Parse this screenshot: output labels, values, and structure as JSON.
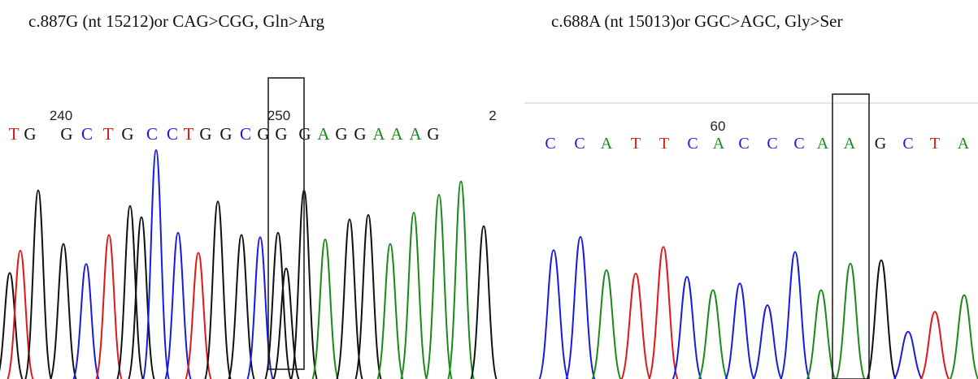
{
  "panels": [
    {
      "id": "left",
      "caption": "c.887G (nt 15212)or CAG>CGG, Gln>Arg",
      "ticks": [
        {
          "label": "240",
          "x": 75
        },
        {
          "label": "250",
          "x": 343
        },
        {
          "label": "2",
          "x": 606
        }
      ],
      "bases": [
        {
          "b": "T",
          "x": 17
        },
        {
          "b": "G",
          "x": 37
        },
        {
          "b": "G",
          "x": 82
        },
        {
          "b": "C",
          "x": 107
        },
        {
          "b": "T",
          "x": 133
        },
        {
          "b": "G",
          "x": 157
        },
        {
          "b": "C",
          "x": 187
        },
        {
          "b": "C",
          "x": 212
        },
        {
          "b": "T",
          "x": 232
        },
        {
          "b": "G",
          "x": 253
        },
        {
          "b": "G",
          "x": 278
        },
        {
          "b": "C",
          "x": 302
        },
        {
          "b": "G",
          "x": 324
        },
        {
          "b": "G",
          "x": 346
        },
        {
          "b": "G",
          "x": 375
        },
        {
          "b": "A",
          "x": 398
        },
        {
          "b": "G",
          "x": 420
        },
        {
          "b": "G",
          "x": 443
        },
        {
          "b": "A",
          "x": 466
        },
        {
          "b": "A",
          "x": 488
        },
        {
          "b": "A",
          "x": 511
        },
        {
          "b": "G",
          "x": 533
        }
      ],
      "peaks": [
        {
          "b": "G",
          "x": 12,
          "h": 0.45
        },
        {
          "b": "T",
          "x": 25,
          "h": 0.55
        },
        {
          "b": "G",
          "x": 47,
          "h": 0.82
        },
        {
          "b": "G",
          "x": 78,
          "h": 0.58
        },
        {
          "b": "C",
          "x": 106,
          "h": 0.49
        },
        {
          "b": "T",
          "x": 134,
          "h": 0.62
        },
        {
          "b": "G",
          "x": 160,
          "h": 0.75
        },
        {
          "b": "G",
          "x": 174,
          "h": 0.7
        },
        {
          "b": "C",
          "x": 192,
          "h": 1.0
        },
        {
          "b": "C",
          "x": 219,
          "h": 0.63
        },
        {
          "b": "T",
          "x": 244,
          "h": 0.54
        },
        {
          "b": "G",
          "x": 268,
          "h": 0.77
        },
        {
          "b": "G",
          "x": 297,
          "h": 0.62
        },
        {
          "b": "C",
          "x": 320,
          "h": 0.61
        },
        {
          "b": "G",
          "x": 342,
          "h": 0.63
        },
        {
          "b": "G",
          "x": 352,
          "h": 0.47
        },
        {
          "b": "G",
          "x": 374,
          "h": 0.82
        },
        {
          "b": "A",
          "x": 400,
          "h": 0.6
        },
        {
          "b": "G",
          "x": 430,
          "h": 0.69
        },
        {
          "b": "G",
          "x": 453,
          "h": 0.71
        },
        {
          "b": "A",
          "x": 480,
          "h": 0.58
        },
        {
          "b": "A",
          "x": 509,
          "h": 0.72
        },
        {
          "b": "A",
          "x": 540,
          "h": 0.8
        },
        {
          "b": "A",
          "x": 567,
          "h": 0.86
        },
        {
          "b": "G",
          "x": 595,
          "h": 0.66
        }
      ],
      "highlight_index": 13
    },
    {
      "id": "right",
      "caption": "c.688A (nt 15013)or GGC>AGC, Gly>Ser",
      "ticks": [
        {
          "label": "60",
          "x": 883
        }
      ],
      "bases": [
        {
          "b": "C",
          "x": 677
        },
        {
          "b": "C",
          "x": 713
        },
        {
          "b": "A",
          "x": 746
        },
        {
          "b": "T",
          "x": 782
        },
        {
          "b": "T",
          "x": 817
        },
        {
          "b": "C",
          "x": 852
        },
        {
          "b": "A",
          "x": 884
        },
        {
          "b": "C",
          "x": 915
        },
        {
          "b": "C",
          "x": 950
        },
        {
          "b": "C",
          "x": 983
        },
        {
          "b": "A",
          "x": 1012
        },
        {
          "b": "A",
          "x": 1045
        },
        {
          "b": "G",
          "x": 1083
        },
        {
          "b": "C",
          "x": 1117
        },
        {
          "b": "T",
          "x": 1150
        },
        {
          "b": "A",
          "x": 1185
        }
      ],
      "peaks": [
        {
          "b": "C",
          "x": 681,
          "h": 0.74
        },
        {
          "b": "C",
          "x": 714,
          "h": 0.82
        },
        {
          "b": "A",
          "x": 746,
          "h": 0.62
        },
        {
          "b": "T",
          "x": 782,
          "h": 0.6
        },
        {
          "b": "T",
          "x": 816,
          "h": 0.76
        },
        {
          "b": "C",
          "x": 845,
          "h": 0.58
        },
        {
          "b": "A",
          "x": 877,
          "h": 0.5
        },
        {
          "b": "C",
          "x": 910,
          "h": 0.54
        },
        {
          "b": "C",
          "x": 944,
          "h": 0.41
        },
        {
          "b": "C",
          "x": 978,
          "h": 0.73
        },
        {
          "b": "A",
          "x": 1010,
          "h": 0.5
        },
        {
          "b": "A",
          "x": 1046,
          "h": 0.66
        },
        {
          "b": "G",
          "x": 1084,
          "h": 0.68
        },
        {
          "b": "C",
          "x": 1117,
          "h": 0.25
        },
        {
          "b": "T",
          "x": 1150,
          "h": 0.37
        },
        {
          "b": "A",
          "x": 1186,
          "h": 0.47
        }
      ],
      "highlight_index": 11
    }
  ],
  "colors": {
    "A": "#1a8a1a",
    "C": "#1a1ae0",
    "G": "#111111",
    "T": "#e01818"
  }
}
